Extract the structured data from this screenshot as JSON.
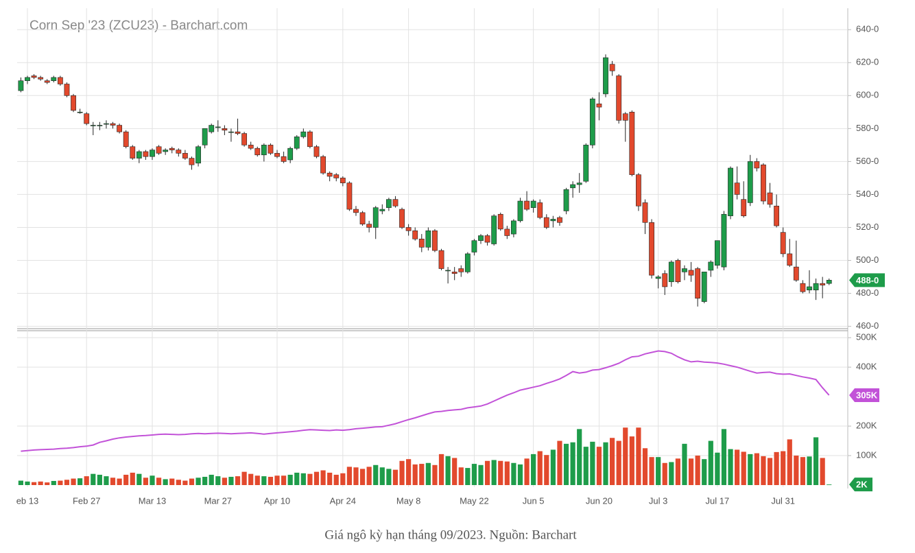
{
  "chart_data": {
    "type": "candlestick",
    "title": "Corn Sep '23 (ZCU23) - Barchart.com",
    "caption": "Giá ngô kỳ hạn tháng 09/2023. Nguồn: Barchart",
    "categories": [
      null,
      "eb 13",
      null,
      null,
      null,
      null,
      null,
      null,
      null,
      null,
      "Feb 27",
      null,
      null,
      null,
      null,
      null,
      null,
      null,
      null,
      null,
      "Mar 13",
      null,
      null,
      null,
      null,
      null,
      null,
      null,
      null,
      null,
      "Mar 27",
      null,
      null,
      null,
      null,
      null,
      null,
      null,
      null,
      "Apr 10",
      null,
      null,
      null,
      null,
      null,
      null,
      null,
      null,
      null,
      "Apr 24",
      null,
      null,
      null,
      null,
      null,
      null,
      null,
      null,
      null,
      "May 8",
      null,
      null,
      null,
      null,
      null,
      null,
      null,
      null,
      null,
      "May 22",
      null,
      null,
      null,
      null,
      null,
      null,
      null,
      null,
      "Jun 5",
      null,
      null,
      null,
      null,
      null,
      null,
      null,
      null,
      null,
      "Jun 20",
      null,
      null,
      null,
      null,
      null,
      null,
      null,
      null,
      "Jul 3",
      null,
      null,
      null,
      null,
      null,
      null,
      null,
      null,
      "Jul 17",
      null,
      null,
      null,
      null,
      null,
      null,
      null,
      null,
      null,
      "Jul 31",
      null,
      null,
      null,
      null,
      null,
      null,
      null
    ],
    "ohlc": [
      [
        603,
        611,
        602,
        609
      ],
      [
        609,
        612,
        607,
        611
      ],
      [
        612,
        613,
        610,
        611
      ],
      [
        611,
        612,
        609,
        610
      ],
      [
        609,
        610,
        607,
        608
      ],
      [
        609,
        612,
        608,
        611
      ],
      [
        611,
        612,
        606,
        607
      ],
      [
        607,
        608,
        599,
        600
      ],
      [
        600,
        601,
        590,
        591
      ],
      [
        590,
        592,
        589,
        590
      ],
      [
        589,
        590,
        582,
        583
      ],
      [
        582,
        584,
        576,
        582
      ],
      [
        582,
        584,
        579,
        582
      ],
      [
        583,
        585,
        580,
        583
      ],
      [
        583,
        584,
        580,
        582
      ],
      [
        582,
        583,
        577,
        578
      ],
      [
        578,
        579,
        568,
        569
      ],
      [
        569,
        570,
        561,
        562
      ],
      [
        562,
        567,
        559,
        566
      ],
      [
        566,
        567,
        561,
        563
      ],
      [
        563,
        568,
        561,
        567
      ],
      [
        569,
        570,
        564,
        565
      ],
      [
        566,
        568,
        564,
        567
      ],
      [
        568,
        569,
        565,
        567
      ],
      [
        567,
        568,
        563,
        565
      ],
      [
        565,
        567,
        561,
        562
      ],
      [
        562,
        563,
        555,
        558
      ],
      [
        559,
        570,
        557,
        569
      ],
      [
        570,
        580,
        568,
        580
      ],
      [
        578,
        583,
        577,
        582
      ],
      [
        581,
        585,
        578,
        581
      ],
      [
        580,
        582,
        576,
        579
      ],
      [
        578,
        580,
        572,
        578
      ],
      [
        578,
        586,
        576,
        577
      ],
      [
        577,
        578,
        569,
        570
      ],
      [
        570,
        572,
        567,
        568
      ],
      [
        568,
        569,
        563,
        564
      ],
      [
        564,
        571,
        560,
        570
      ],
      [
        570,
        571,
        564,
        565
      ],
      [
        565,
        567,
        562,
        563
      ],
      [
        563,
        566,
        559,
        560
      ],
      [
        561,
        569,
        559,
        568
      ],
      [
        568,
        576,
        567,
        575
      ],
      [
        575,
        580,
        574,
        578
      ],
      [
        578,
        579,
        568,
        569
      ],
      [
        569,
        570,
        562,
        563
      ],
      [
        563,
        564,
        552,
        553
      ],
      [
        553,
        554,
        548,
        551
      ],
      [
        552,
        553,
        548,
        550
      ],
      [
        550,
        551,
        545,
        547
      ],
      [
        547,
        548,
        530,
        531
      ],
      [
        531,
        533,
        527,
        529
      ],
      [
        529,
        530,
        521,
        522
      ],
      [
        522,
        524,
        517,
        520
      ],
      [
        520,
        533,
        513,
        532
      ],
      [
        530,
        534,
        528,
        531
      ],
      [
        532,
        538,
        530,
        537
      ],
      [
        537,
        539,
        532,
        533
      ],
      [
        531,
        532,
        519,
        520
      ],
      [
        520,
        522,
        515,
        518
      ],
      [
        518,
        520,
        512,
        513
      ],
      [
        513,
        516,
        505,
        508
      ],
      [
        508,
        520,
        506,
        518
      ],
      [
        518,
        519,
        505,
        506
      ],
      [
        506,
        507,
        494,
        495
      ],
      [
        494,
        496,
        486,
        494
      ],
      [
        493,
        496,
        488,
        492
      ],
      [
        495,
        497,
        490,
        493
      ],
      [
        493,
        505,
        492,
        504
      ],
      [
        505,
        513,
        503,
        512
      ],
      [
        512,
        516,
        510,
        515
      ],
      [
        515,
        516,
        509,
        511
      ],
      [
        510,
        528,
        509,
        527
      ],
      [
        528,
        529,
        518,
        519
      ],
      [
        519,
        521,
        513,
        515
      ],
      [
        516,
        525,
        514,
        524
      ],
      [
        524,
        538,
        523,
        536
      ],
      [
        536,
        542,
        530,
        531
      ],
      [
        532,
        537,
        529,
        536
      ],
      [
        535,
        537,
        525,
        526
      ],
      [
        526,
        528,
        519,
        520
      ],
      [
        524,
        527,
        520,
        525
      ],
      [
        526,
        527,
        521,
        523
      ],
      [
        530,
        544,
        528,
        543
      ],
      [
        544,
        548,
        538,
        546
      ],
      [
        546,
        553,
        541,
        547
      ],
      [
        548,
        571,
        547,
        570
      ],
      [
        570,
        599,
        568,
        598
      ],
      [
        595,
        602,
        585,
        593
      ],
      [
        601,
        625,
        599,
        623
      ],
      [
        619,
        621,
        612,
        615
      ],
      [
        612,
        613,
        583,
        585
      ],
      [
        589,
        590,
        572,
        585
      ],
      [
        590,
        591,
        551,
        552
      ],
      [
        552,
        553,
        530,
        533
      ],
      [
        535,
        537,
        516,
        523
      ],
      [
        523,
        525,
        489,
        491
      ],
      [
        489,
        491,
        483,
        490
      ],
      [
        492,
        494,
        479,
        484
      ],
      [
        487,
        500,
        484,
        499
      ],
      [
        500,
        501,
        486,
        487
      ],
      [
        493,
        497,
        488,
        495
      ],
      [
        494,
        499,
        487,
        491
      ],
      [
        495,
        496,
        472,
        477
      ],
      [
        475,
        493,
        474,
        493
      ],
      [
        494,
        500,
        490,
        499
      ],
      [
        497,
        512,
        495,
        512
      ],
      [
        496,
        530,
        494,
        528
      ],
      [
        527,
        557,
        525,
        556
      ],
      [
        547,
        557,
        537,
        540
      ],
      [
        537,
        548,
        526,
        527
      ],
      [
        535,
        564,
        533,
        560
      ],
      [
        560,
        562,
        554,
        556
      ],
      [
        558,
        559,
        534,
        536
      ],
      [
        541,
        547,
        532,
        534
      ],
      [
        533,
        540,
        520,
        521
      ],
      [
        517,
        520,
        502,
        504
      ],
      [
        504,
        513,
        496,
        497
      ],
      [
        496,
        512,
        487,
        488
      ],
      [
        486,
        488,
        480,
        481
      ],
      [
        482,
        494,
        480,
        484
      ],
      [
        482,
        489,
        476,
        486
      ],
      [
        486,
        490,
        477,
        485
      ],
      [
        486,
        489,
        485,
        488
      ]
    ],
    "volume": [
      15000,
      12000,
      10000,
      12000,
      9000,
      14000,
      15000,
      18000,
      22000,
      23000,
      30000,
      38000,
      35000,
      30000,
      25000,
      22000,
      35000,
      42000,
      38000,
      25000,
      32000,
      25000,
      20000,
      22000,
      18000,
      15000,
      22000,
      25000,
      28000,
      35000,
      30000,
      25000,
      28000,
      30000,
      45000,
      38000,
      32000,
      30000,
      28000,
      32000,
      32000,
      35000,
      42000,
      40000,
      38000,
      45000,
      50000,
      42000,
      35000,
      40000,
      62000,
      60000,
      55000,
      62000,
      68000,
      60000,
      55000,
      52000,
      82000,
      88000,
      70000,
      72000,
      75000,
      68000,
      105000,
      98000,
      92000,
      60000,
      58000,
      72000,
      68000,
      82000,
      85000,
      82000,
      80000,
      75000,
      70000,
      90000,
      105000,
      115000,
      102000,
      120000,
      150000,
      140000,
      145000,
      190000,
      130000,
      147000,
      130000,
      145000,
      160000,
      150000,
      195000,
      165000,
      195000,
      125000,
      95000,
      95000,
      75000,
      78000,
      90000,
      140000,
      90000,
      100000,
      88000,
      150000,
      110000,
      190000,
      122000,
      120000,
      113000,
      105000,
      108000,
      98000,
      92000,
      112000,
      115000,
      155000,
      100000,
      95000,
      97000,
      162000,
      92000,
      2000
    ],
    "open_interest": [
      115000,
      117000,
      119000,
      120000,
      121000,
      122000,
      124000,
      125000,
      127000,
      130000,
      132000,
      136000,
      145000,
      150000,
      156000,
      160000,
      163000,
      165000,
      167000,
      168000,
      170000,
      172000,
      173000,
      172000,
      171000,
      172000,
      174000,
      175000,
      174000,
      175000,
      176000,
      175000,
      174000,
      175000,
      176000,
      177000,
      175000,
      173000,
      175000,
      177000,
      179000,
      181000,
      183000,
      186000,
      188000,
      187000,
      186000,
      185000,
      187000,
      186000,
      188000,
      191000,
      193000,
      195000,
      197000,
      198000,
      203000,
      208000,
      215000,
      222000,
      228000,
      235000,
      242000,
      248000,
      250000,
      253000,
      255000,
      257000,
      262000,
      265000,
      268000,
      275000,
      285000,
      295000,
      305000,
      313000,
      322000,
      327000,
      332000,
      337000,
      345000,
      352000,
      360000,
      372000,
      385000,
      380000,
      383000,
      390000,
      392000,
      398000,
      405000,
      413000,
      425000,
      435000,
      437000,
      445000,
      450000,
      455000,
      453000,
      447000,
      435000,
      425000,
      418000,
      420000,
      417000,
      416000,
      414000,
      410000,
      405000,
      400000,
      393000,
      386000,
      380000,
      382000,
      383000,
      378000,
      376000,
      377000,
      372000,
      367000,
      363000,
      358000,
      330000,
      305000
    ],
    "last_labels": {
      "close": "488-0",
      "open_interest": "305K",
      "volume": "2K"
    },
    "up_color": "#1e9c4a",
    "down_color": "#e2492d",
    "oi_color": "#c252d8",
    "ylim": [
      459,
      653
    ],
    "yticks": [
      {
        "value": 460,
        "label": "460-0"
      },
      {
        "value": 480,
        "label": "480-0"
      },
      {
        "value": 500,
        "label": "500-0"
      },
      {
        "value": 520,
        "label": "520-0"
      },
      {
        "value": 540,
        "label": "540-0"
      },
      {
        "value": 560,
        "label": "560-0"
      },
      {
        "value": 580,
        "label": "580-0"
      },
      {
        "value": 600,
        "label": "600-0"
      },
      {
        "value": 620,
        "label": "620-0"
      },
      {
        "value": 640,
        "label": "640-0"
      }
    ],
    "y2lim": [
      -7000,
      519000
    ],
    "y2ticks": [
      {
        "value": 100000,
        "label": "100K"
      },
      {
        "value": 200000,
        "label": "200K"
      },
      {
        "value": 400000,
        "label": "400K"
      },
      {
        "value": 500000,
        "label": "500K"
      }
    ],
    "grid": true
  }
}
